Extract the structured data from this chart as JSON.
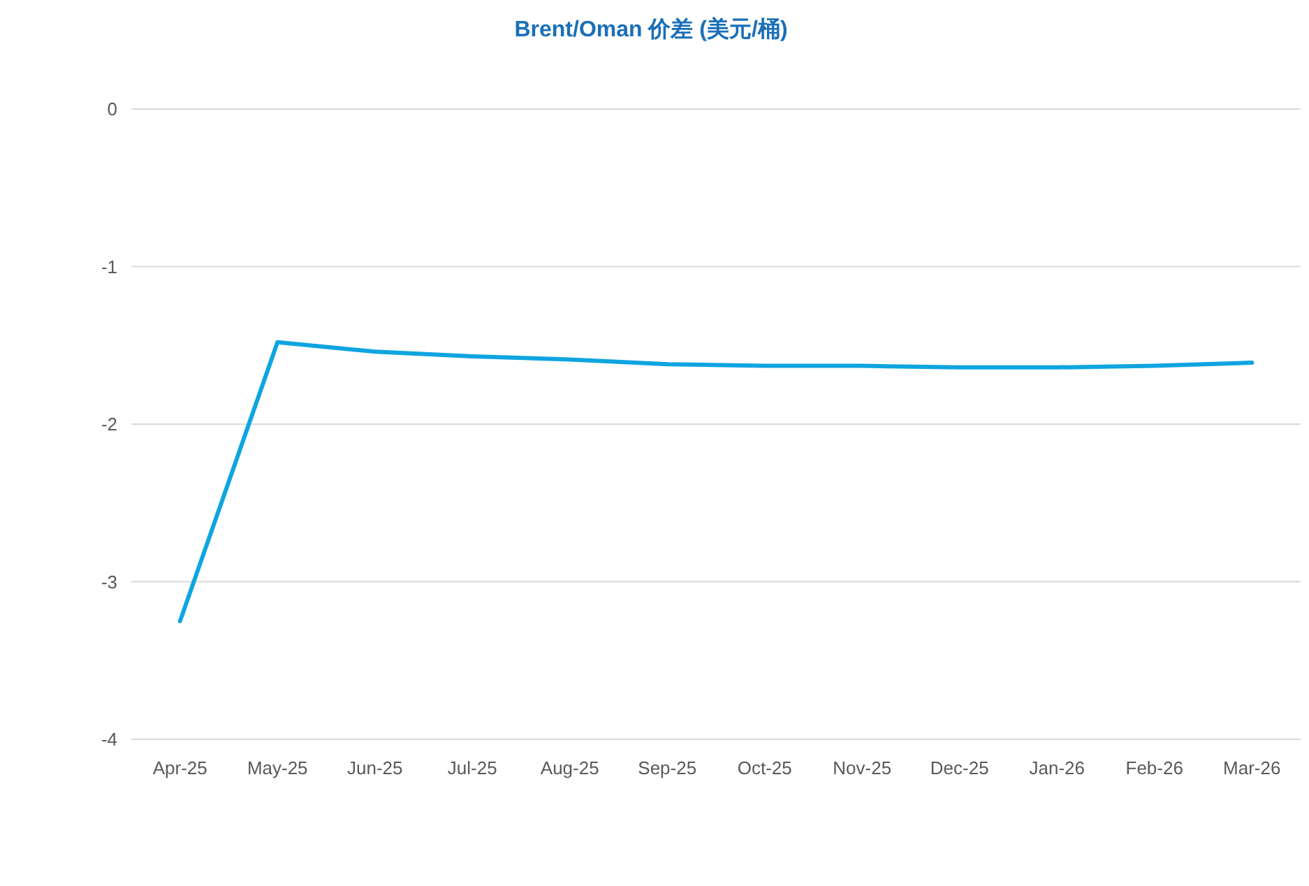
{
  "chart_data": {
    "type": "line",
    "title": "Brent/Oman 价差 (美元/桶)",
    "categories": [
      "Apr-25",
      "May-25",
      "Jun-25",
      "Jul-25",
      "Aug-25",
      "Sep-25",
      "Oct-25",
      "Nov-25",
      "Dec-25",
      "Jan-26",
      "Feb-26",
      "Mar-26"
    ],
    "series": [
      {
        "color": "#0ea5e0",
        "values": [
          -3.25,
          -1.48,
          -1.54,
          -1.57,
          -1.59,
          -1.62,
          -1.63,
          -1.63,
          -1.64,
          -1.64,
          -1.63,
          -1.61
        ]
      }
    ],
    "ylim": [
      -4,
      0
    ],
    "yticks": [
      -4,
      -3,
      -2,
      -1,
      0
    ],
    "grid": "y"
  }
}
